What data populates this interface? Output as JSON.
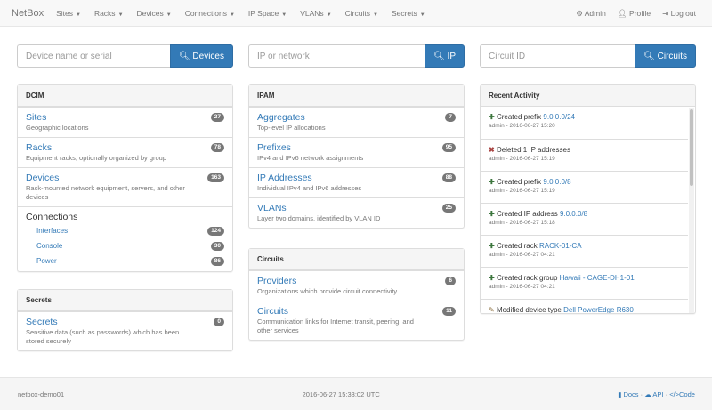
{
  "nav": {
    "brand": "NetBox",
    "menus": [
      "Sites",
      "Racks",
      "Devices",
      "Connections",
      "IP Space",
      "VLANs",
      "Circuits",
      "Secrets"
    ],
    "admin": "Admin",
    "profile": "Profile",
    "logout": "Log out"
  },
  "search": [
    {
      "placeholder": "Device name or serial",
      "button": "Devices"
    },
    {
      "placeholder": "IP or network",
      "button": "IP"
    },
    {
      "placeholder": "Circuit ID",
      "button": "Circuits"
    }
  ],
  "dcim": {
    "title": "DCIM",
    "items": [
      {
        "label": "Sites",
        "desc": "Geographic locations",
        "count": "27"
      },
      {
        "label": "Racks",
        "desc": "Equipment racks, optionally organized by group",
        "count": "78"
      },
      {
        "label": "Devices",
        "desc": "Rack-mounted network equipment, servers, and other devices",
        "count": "163"
      }
    ],
    "connections": {
      "label": "Connections",
      "items": [
        {
          "label": "Interfaces",
          "count": "124"
        },
        {
          "label": "Console",
          "count": "30"
        },
        {
          "label": "Power",
          "count": "86"
        }
      ]
    }
  },
  "secrets": {
    "title": "Secrets",
    "items": [
      {
        "label": "Secrets",
        "desc": "Sensitive data (such as passwords) which has been stored securely",
        "count": "0"
      }
    ]
  },
  "ipam": {
    "title": "IPAM",
    "items": [
      {
        "label": "Aggregates",
        "desc": "Top-level IP allocations",
        "count": "7"
      },
      {
        "label": "Prefixes",
        "desc": "IPv4 and IPv6 network assignments",
        "count": "95"
      },
      {
        "label": "IP Addresses",
        "desc": "Individual IPv4 and IPv6 addresses",
        "count": "88"
      },
      {
        "label": "VLANs",
        "desc": "Layer two domains, identified by VLAN ID",
        "count": "25"
      }
    ]
  },
  "circuits": {
    "title": "Circuits",
    "items": [
      {
        "label": "Providers",
        "desc": "Organizations which provide circuit connectivity",
        "count": "6"
      },
      {
        "label": "Circuits",
        "desc": "Communication links for Internet transit, peering, and other services",
        "count": "11"
      }
    ]
  },
  "activity": {
    "title": "Recent Activity",
    "items": [
      {
        "icon": "plus",
        "text": "Created prefix",
        "link": "9.0.0.0/24",
        "meta": "admin - 2016-06-27 15:20"
      },
      {
        "icon": "x",
        "text": "Deleted 1 IP addresses",
        "link": "",
        "meta": "admin - 2016-06-27 15:19"
      },
      {
        "icon": "plus",
        "text": "Created prefix",
        "link": "9.0.0.0/8",
        "meta": "admin - 2016-06-27 15:19"
      },
      {
        "icon": "plus",
        "text": "Created IP address",
        "link": "9.0.0.0/8",
        "meta": "admin - 2016-06-27 15:18"
      },
      {
        "icon": "plus",
        "text": "Created rack",
        "link": "RACK-01-CA",
        "meta": "admin - 2016-06-27 04:21"
      },
      {
        "icon": "plus",
        "text": "Created rack group",
        "link": "Hawaii - CAGE-DH1-01",
        "meta": "admin - 2016-06-27 04:21"
      },
      {
        "icon": "pencil",
        "text": "Modified device type",
        "link": "Dell PowerEdge R630",
        "meta": ""
      }
    ]
  },
  "footer": {
    "host": "netbox-demo01",
    "time": "2016-06-27 15:33:02 UTC",
    "docs": "Docs",
    "api": "API",
    "code": "Code",
    "sep": "·"
  }
}
